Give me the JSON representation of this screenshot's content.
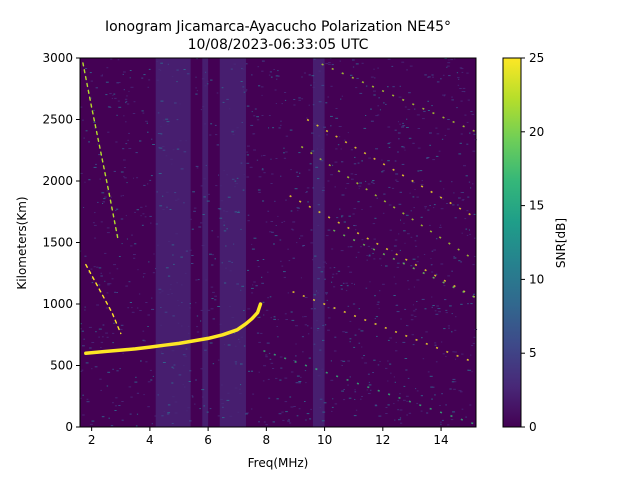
{
  "chart_data": {
    "type": "heatmap",
    "title": "Ionogram Jicamarca-Ayacucho Polarization NE45°",
    "subtitle": "10/08/2023-06:33:05 UTC",
    "xlabel": "Freq(MHz)",
    "ylabel": "Kilometers(Km)",
    "xlim": [
      1.6,
      15.2
    ],
    "ylim": [
      0,
      3000
    ],
    "xticks": [
      "2",
      "4",
      "6",
      "8",
      "10",
      "12",
      "14"
    ],
    "yticks": [
      "0",
      "500",
      "1000",
      "1500",
      "2000",
      "2500",
      "3000"
    ],
    "colorbar": {
      "label": "SNR[dB]",
      "range": [
        0,
        25
      ],
      "ticks": [
        "0",
        "5",
        "10",
        "15",
        "20",
        "25"
      ],
      "colormap": [
        "#440154",
        "#482878",
        "#3e4989",
        "#31688e",
        "#26828e",
        "#1f9e89",
        "#35b779",
        "#6ece58",
        "#b5de2b",
        "#fde725"
      ]
    },
    "background_color": "#440154",
    "noise_color": "#482878",
    "interference_bands_mhz": [
      [
        4.2,
        5.4
      ],
      [
        5.8,
        6.0
      ],
      [
        6.4,
        7.3
      ],
      [
        9.6,
        10.0
      ]
    ],
    "traces": [
      {
        "name": "F-layer trace",
        "color": "#fde725",
        "x": [
          1.8,
          2.5,
          3.0,
          3.5,
          4.0,
          4.5,
          5.0,
          5.5,
          6.0,
          6.5,
          7.0,
          7.3,
          7.5,
          7.7,
          7.8
        ],
        "y": [
          600,
          615,
          625,
          635,
          650,
          665,
          680,
          700,
          720,
          750,
          790,
          840,
          880,
          930,
          1000
        ]
      },
      {
        "name": "multihop trace",
        "color": "#fde725",
        "x": [
          1.8,
          2.1,
          2.4,
          2.7,
          3.0
        ],
        "y": [
          1320,
          1190,
          1060,
          930,
          760
        ]
      },
      {
        "name": "upper streak",
        "color": "#b5de2b",
        "x": [
          1.7,
          2.0,
          2.3,
          2.6,
          2.9
        ],
        "y": [
          2960,
          2600,
          2250,
          1900,
          1530
        ]
      }
    ],
    "streak_bands": [
      {
        "x": [
          8.8,
          15.2
        ],
        "y": [
          1880,
          1050
        ],
        "color": "#fde725"
      },
      {
        "x": [
          9.2,
          15.2
        ],
        "y": [
          2280,
          1350
        ],
        "color": "#b5de2b"
      },
      {
        "x": [
          9.4,
          15.2
        ],
        "y": [
          2500,
          1700
        ],
        "color": "#fde725"
      },
      {
        "x": [
          9.9,
          15.2
        ],
        "y": [
          2950,
          2400
        ],
        "color": "#b5de2b"
      },
      {
        "x": [
          7.9,
          15.2
        ],
        "y": [
          620,
          20
        ],
        "color": "#35b779"
      },
      {
        "x": [
          8.9,
          15.2
        ],
        "y": [
          1100,
          520
        ],
        "color": "#fde725"
      },
      {
        "x": [
          10.3,
          15.2
        ],
        "y": [
          1600,
          1050
        ],
        "color": "#6ece58"
      }
    ]
  }
}
